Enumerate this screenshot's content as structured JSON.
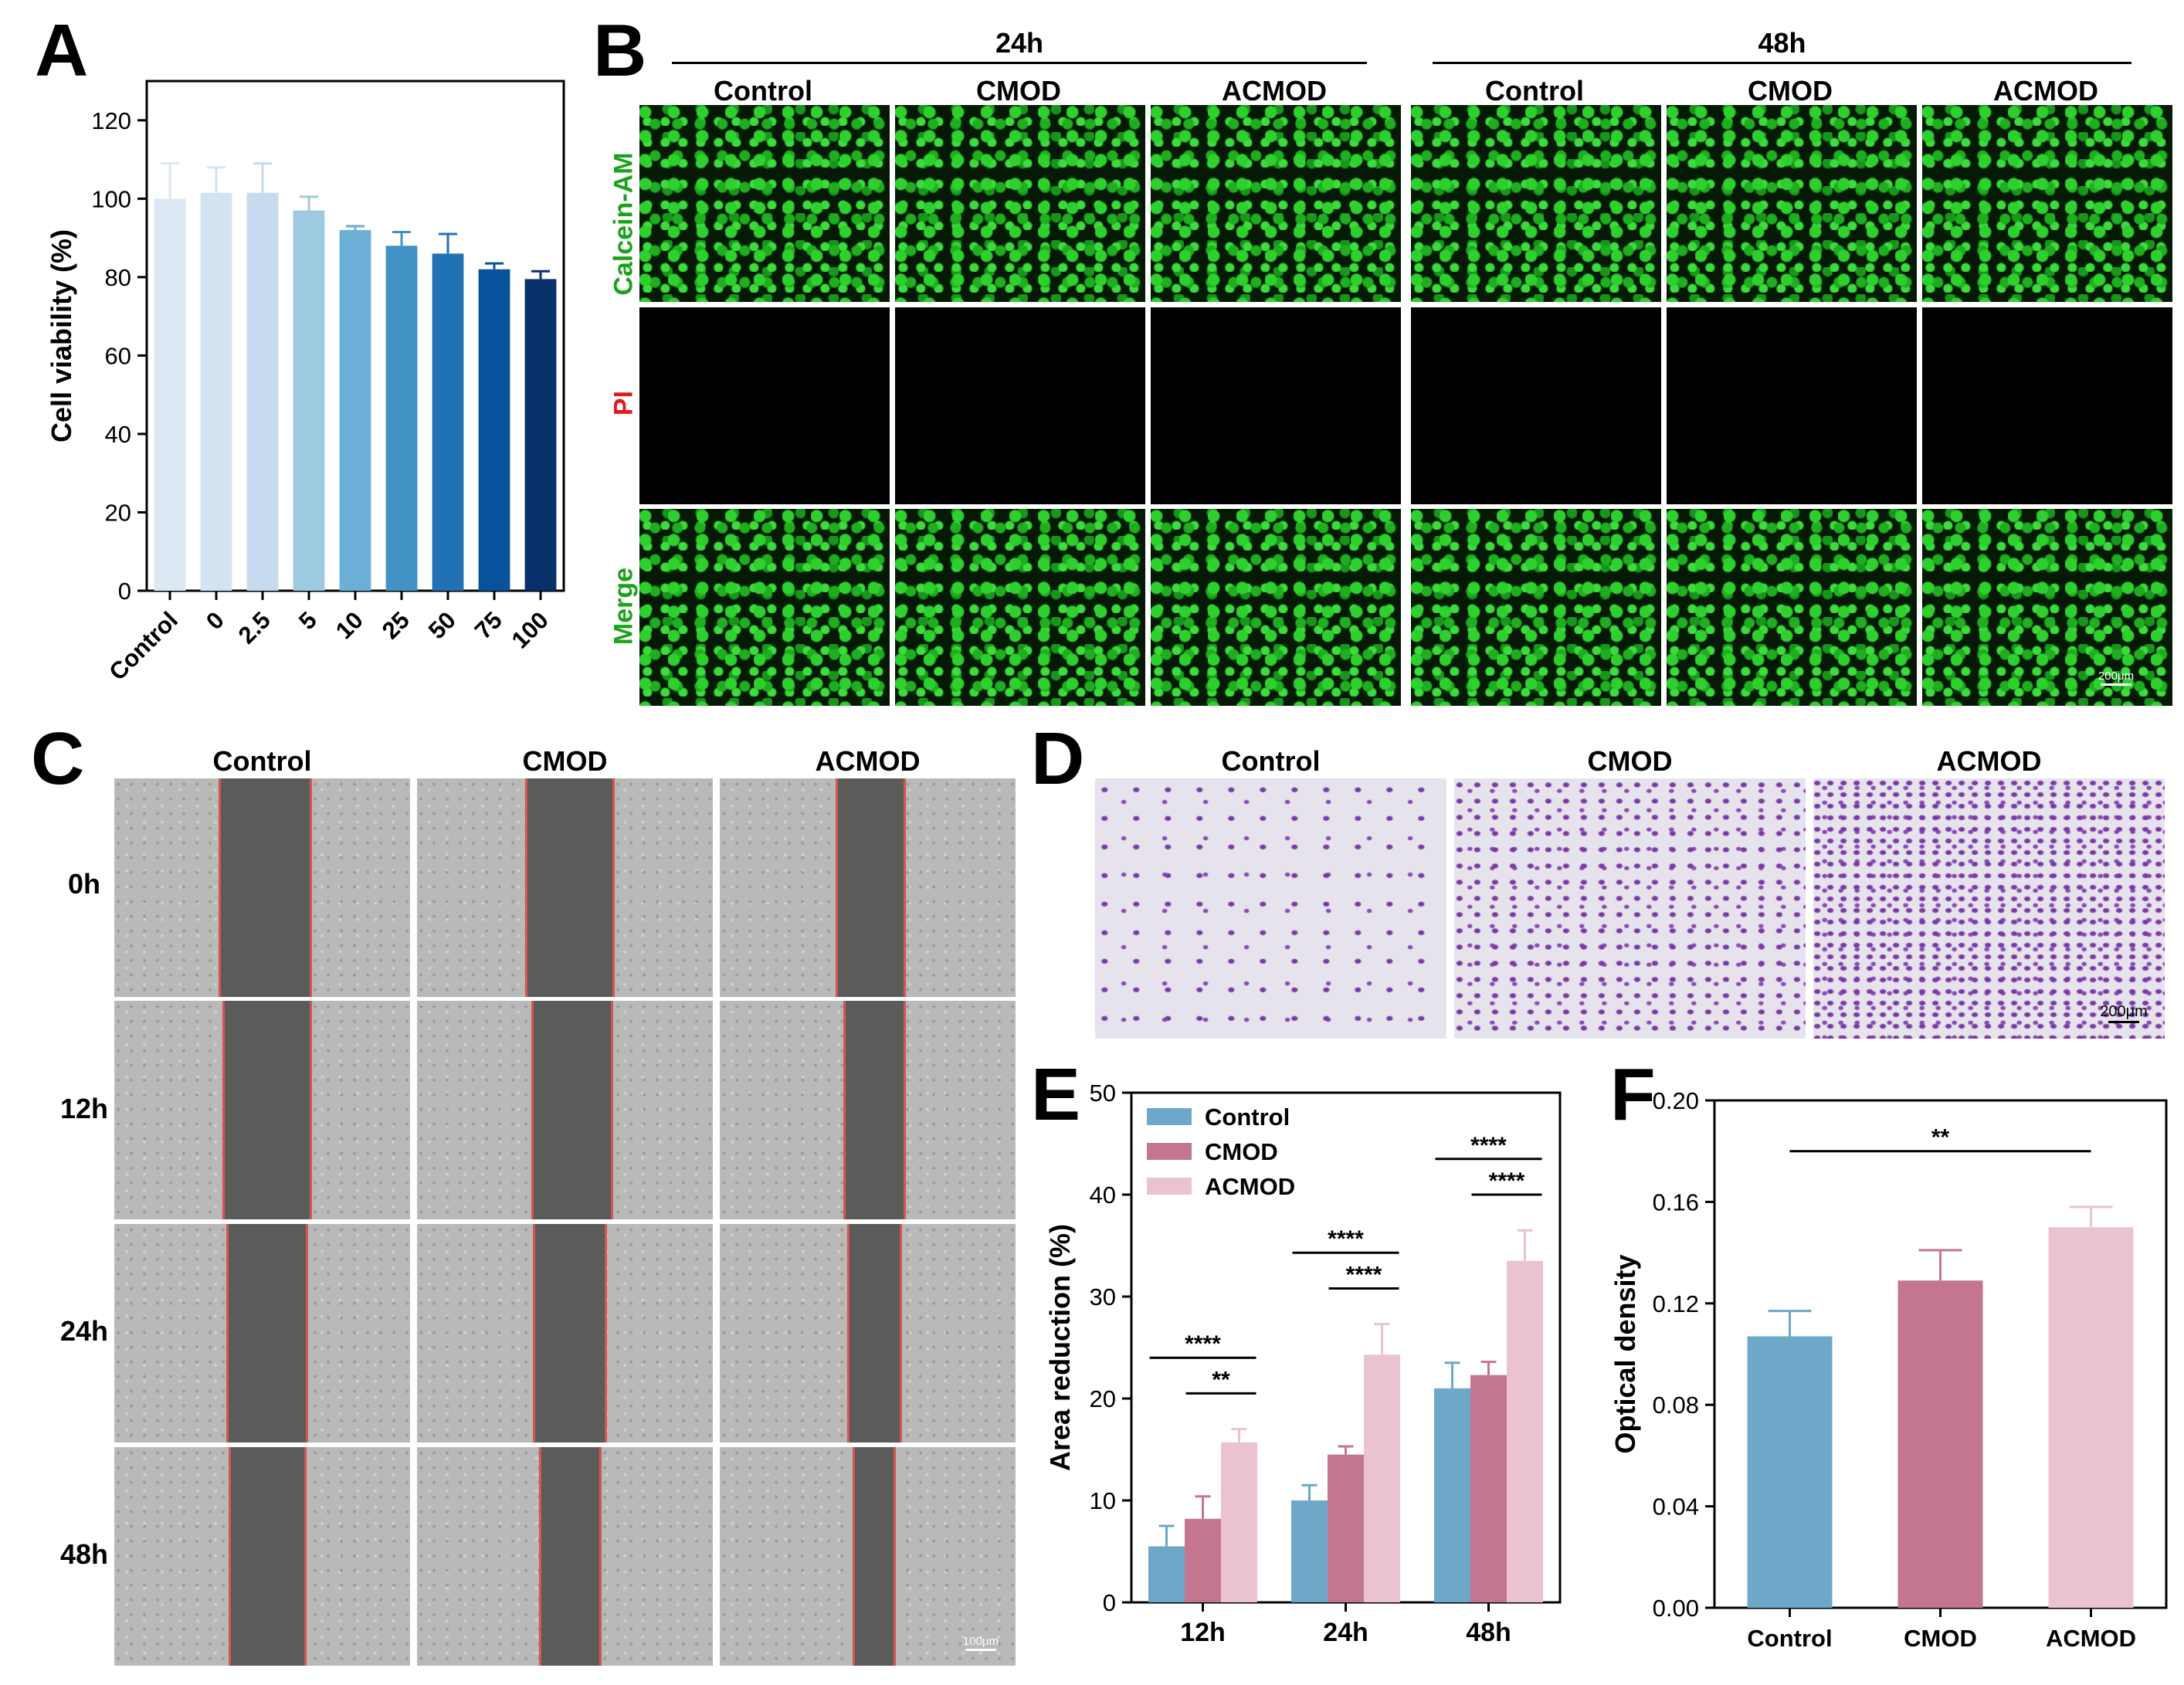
{
  "panels": {
    "a": {
      "letter": "A"
    },
    "b": {
      "letter": "B"
    },
    "c": {
      "letter": "C"
    },
    "d": {
      "letter": "D"
    },
    "e": {
      "letter": "E"
    },
    "f": {
      "letter": "F"
    }
  },
  "b_panel": {
    "time_24": "24h",
    "time_48": "48h",
    "columns": [
      "Control",
      "CMOD",
      "ACMOD",
      "Control",
      "CMOD",
      "ACMOD"
    ],
    "rows": [
      "Calcein-AM",
      "PI",
      "Merge"
    ],
    "row_colors": [
      "#1aa31a",
      "#e31a1c",
      "#1aa31a"
    ],
    "scale": "200μm"
  },
  "c_panel": {
    "columns": [
      "Control",
      "CMOD",
      "ACMOD"
    ],
    "rows": [
      "0h",
      "12h",
      "24h",
      "48h"
    ],
    "scale": "100μm"
  },
  "d_panel": {
    "columns": [
      "Control",
      "CMOD",
      "ACMOD"
    ],
    "scale": "200μm"
  },
  "chart_data": [
    {
      "id": "A",
      "type": "bar",
      "categories": [
        "Control",
        "0",
        "2.5",
        "5",
        "10",
        "25",
        "50",
        "75",
        "100"
      ],
      "values": [
        100,
        101.5,
        101.5,
        97,
        92,
        88,
        86,
        82,
        79.5
      ],
      "errors": [
        9,
        6.5,
        7.5,
        3.5,
        1,
        3.5,
        5,
        1.5,
        2
      ],
      "colors": [
        "#dce8f4",
        "#d3e3f1",
        "#c6dbef",
        "#9ecae1",
        "#6baed6",
        "#4292c6",
        "#2171b5",
        "#08519c",
        "#08306b"
      ],
      "ylabel": "Cell viability (%)",
      "ylim": [
        0,
        130
      ],
      "yticks": [
        0,
        20,
        40,
        60,
        80,
        100,
        120
      ]
    },
    {
      "id": "E",
      "type": "bar",
      "categories": [
        "12h",
        "24h",
        "48h"
      ],
      "series": [
        {
          "name": "Control",
          "color": "#6ea8c8",
          "values": [
            5.5,
            10,
            21
          ],
          "errors": [
            2,
            1.5,
            2.5
          ]
        },
        {
          "name": "CMOD",
          "color": "#c47690",
          "values": [
            8.2,
            14.5,
            22.3
          ],
          "errors": [
            2.2,
            0.8,
            1.3
          ]
        },
        {
          "name": "ACMOD",
          "color": "#ebc3cf",
          "values": [
            15.7,
            24.3,
            33.5
          ],
          "errors": [
            1.3,
            3,
            3
          ]
        }
      ],
      "ylabel": "Area reduction (%)",
      "ylim": [
        0,
        50
      ],
      "yticks": [
        0,
        10,
        20,
        30,
        40,
        50
      ],
      "annotations": [
        {
          "group": 0,
          "from": 0,
          "to": 2,
          "label": "****"
        },
        {
          "group": 0,
          "from": 1,
          "to": 2,
          "label": "**"
        },
        {
          "group": 1,
          "from": 0,
          "to": 2,
          "label": "****"
        },
        {
          "group": 1,
          "from": 1,
          "to": 2,
          "label": "****"
        },
        {
          "group": 2,
          "from": 0,
          "to": 2,
          "label": "****"
        },
        {
          "group": 2,
          "from": 1,
          "to": 2,
          "label": "****"
        }
      ]
    },
    {
      "id": "F",
      "type": "bar",
      "categories": [
        "Control",
        "CMOD",
        "ACMOD"
      ],
      "values": [
        0.107,
        0.129,
        0.15
      ],
      "errors": [
        0.01,
        0.012,
        0.008
      ],
      "colors": [
        "#6ea8c8",
        "#c47690",
        "#ebc3cf"
      ],
      "ylabel": "Optical density",
      "ylim": [
        0,
        0.2
      ],
      "yticks": [
        "0.00",
        "0.04",
        "0.08",
        "0.12",
        "0.16",
        "0.20"
      ],
      "annotation": {
        "from": 0,
        "to": 2,
        "label": "**"
      }
    }
  ]
}
